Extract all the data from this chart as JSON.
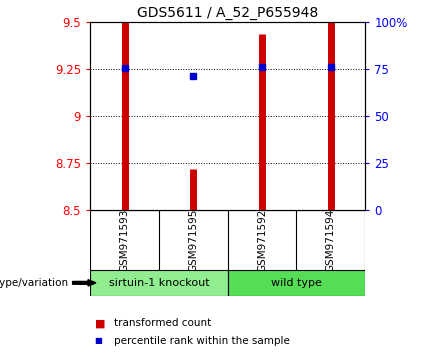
{
  "title": "GDS5611 / A_52_P655948",
  "samples": [
    "GSM971593",
    "GSM971595",
    "GSM971592",
    "GSM971594"
  ],
  "group_labels": [
    "sirtuin-1 knockout",
    "wild type"
  ],
  "bar_bottom": 8.5,
  "transformed_counts": [
    9.5,
    8.72,
    9.44,
    9.5
  ],
  "percentile_ranks": [
    9.255,
    9.215,
    9.26,
    9.26
  ],
  "ylim_left": [
    8.5,
    9.5
  ],
  "ylim_right": [
    0,
    100
  ],
  "yticks_left": [
    8.5,
    8.75,
    9.0,
    9.25,
    9.5
  ],
  "ytick_labels_left": [
    "8.5",
    "8.75",
    "9",
    "9.25",
    "9.5"
  ],
  "yticks_right": [
    0,
    25,
    50,
    75,
    100
  ],
  "ytick_labels_right": [
    "0",
    "25",
    "50",
    "75",
    "100%"
  ],
  "bar_color": "#CC0000",
  "dot_color": "#0000CC",
  "background_color": "#ffffff",
  "plot_bg_color": "#ffffff",
  "label_area_bg": "#C8C8C8",
  "knockout_bg": "#90EE90",
  "wildtype_bg": "#55DD55",
  "legend_red_label": "transformed count",
  "legend_blue_label": "percentile rank within the sample",
  "genotype_label": "genotype/variation"
}
